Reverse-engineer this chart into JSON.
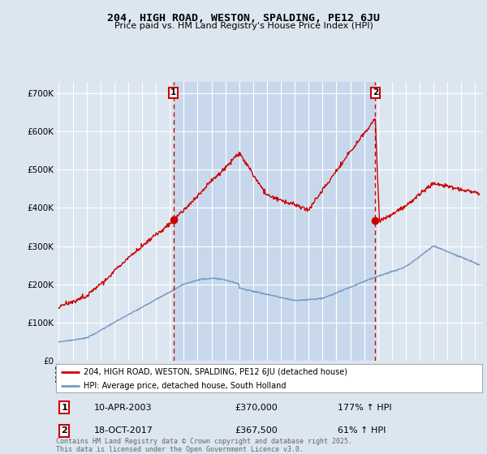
{
  "title": "204, HIGH ROAD, WESTON, SPALDING, PE12 6JU",
  "subtitle": "Price paid vs. HM Land Registry's House Price Index (HPI)",
  "background_color": "#dce6f0",
  "plot_background": "#dce6f0",
  "plot_stripe_color": "#c8d8ec",
  "ylim": [
    0,
    730000
  ],
  "yticks": [
    0,
    100000,
    200000,
    300000,
    400000,
    500000,
    600000,
    700000
  ],
  "ytick_labels": [
    "£0",
    "£100K",
    "£200K",
    "£300K",
    "£400K",
    "£500K",
    "£600K",
    "£700K"
  ],
  "xlim_start": 1994.8,
  "xlim_end": 2025.5,
  "marker1_x": 2003.27,
  "marker1_y": 370000,
  "marker2_x": 2017.8,
  "marker2_y": 367500,
  "legend_line1": "204, HIGH ROAD, WESTON, SPALDING, PE12 6JU (detached house)",
  "legend_line2": "HPI: Average price, detached house, South Holland",
  "note1_label": "1",
  "note1_date": "10-APR-2003",
  "note1_price": "£370,000",
  "note1_hpi": "177% ↑ HPI",
  "note2_label": "2",
  "note2_date": "18-OCT-2017",
  "note2_price": "£367,500",
  "note2_hpi": "61% ↑ HPI",
  "footer": "Contains HM Land Registry data © Crown copyright and database right 2025.\nThis data is licensed under the Open Government Licence v3.0.",
  "red_color": "#cc0000",
  "blue_color": "#7399c6"
}
